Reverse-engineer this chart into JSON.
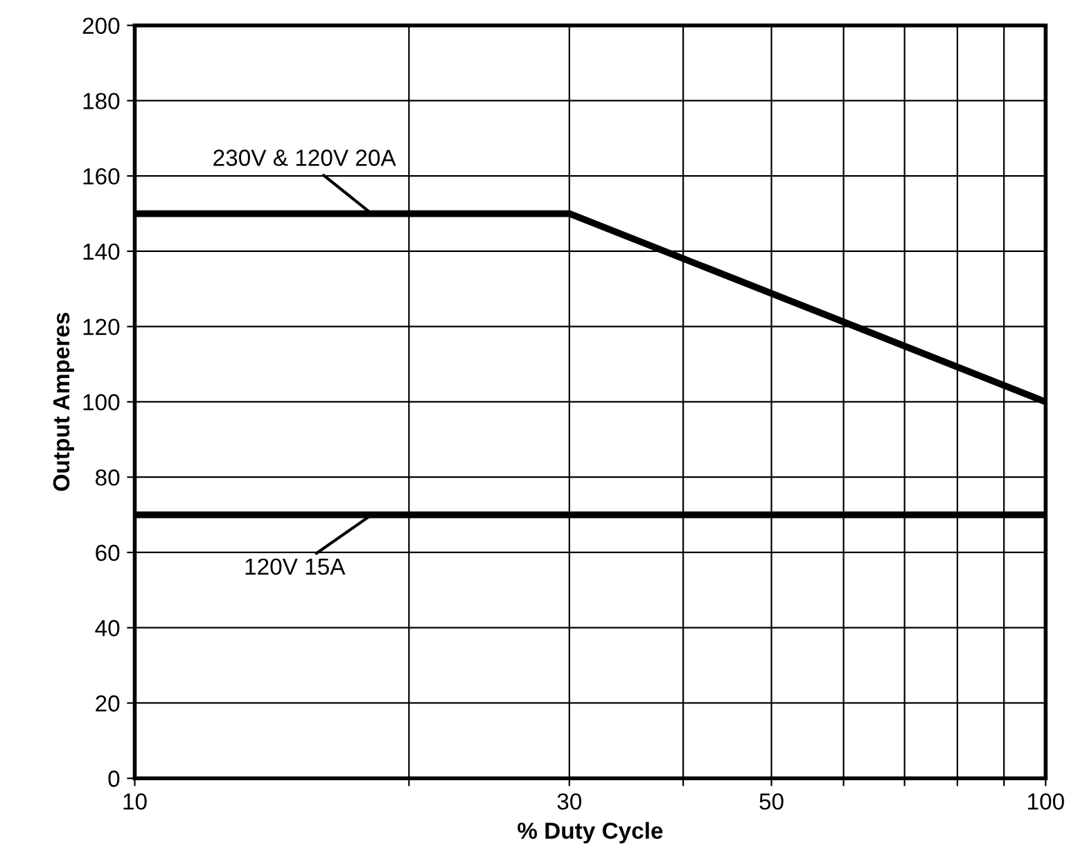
{
  "chart_data": {
    "type": "line",
    "xlabel": "% Duty Cycle",
    "ylabel": "Output Amperes",
    "log": "x",
    "series": [
      {
        "name": "230V & 120V 20A",
        "color": "#000000",
        "x": [
          10,
          30,
          100
        ],
        "values": [
          150,
          150,
          100
        ]
      },
      {
        "name": "120V 15A",
        "color": "#000000",
        "x": [
          10,
          100
        ],
        "values": [
          70,
          70
        ]
      }
    ],
    "xlim": [
      10,
      100
    ],
    "xticks": [
      10,
      {
        "value": 20,
        "label": null
      },
      30,
      {
        "value": 40,
        "label": null
      },
      50,
      {
        "value": 60,
        "label": null
      },
      {
        "value": 70,
        "label": null
      },
      {
        "value": 80,
        "label": null
      },
      {
        "value": 90,
        "label": null
      },
      100
    ],
    "ylim": [
      0,
      200
    ],
    "yticks": [
      0,
      20,
      40,
      60,
      80,
      100,
      120,
      140,
      160,
      180,
      200
    ],
    "grid": true,
    "marker": "none",
    "line_style": "solid"
  }
}
